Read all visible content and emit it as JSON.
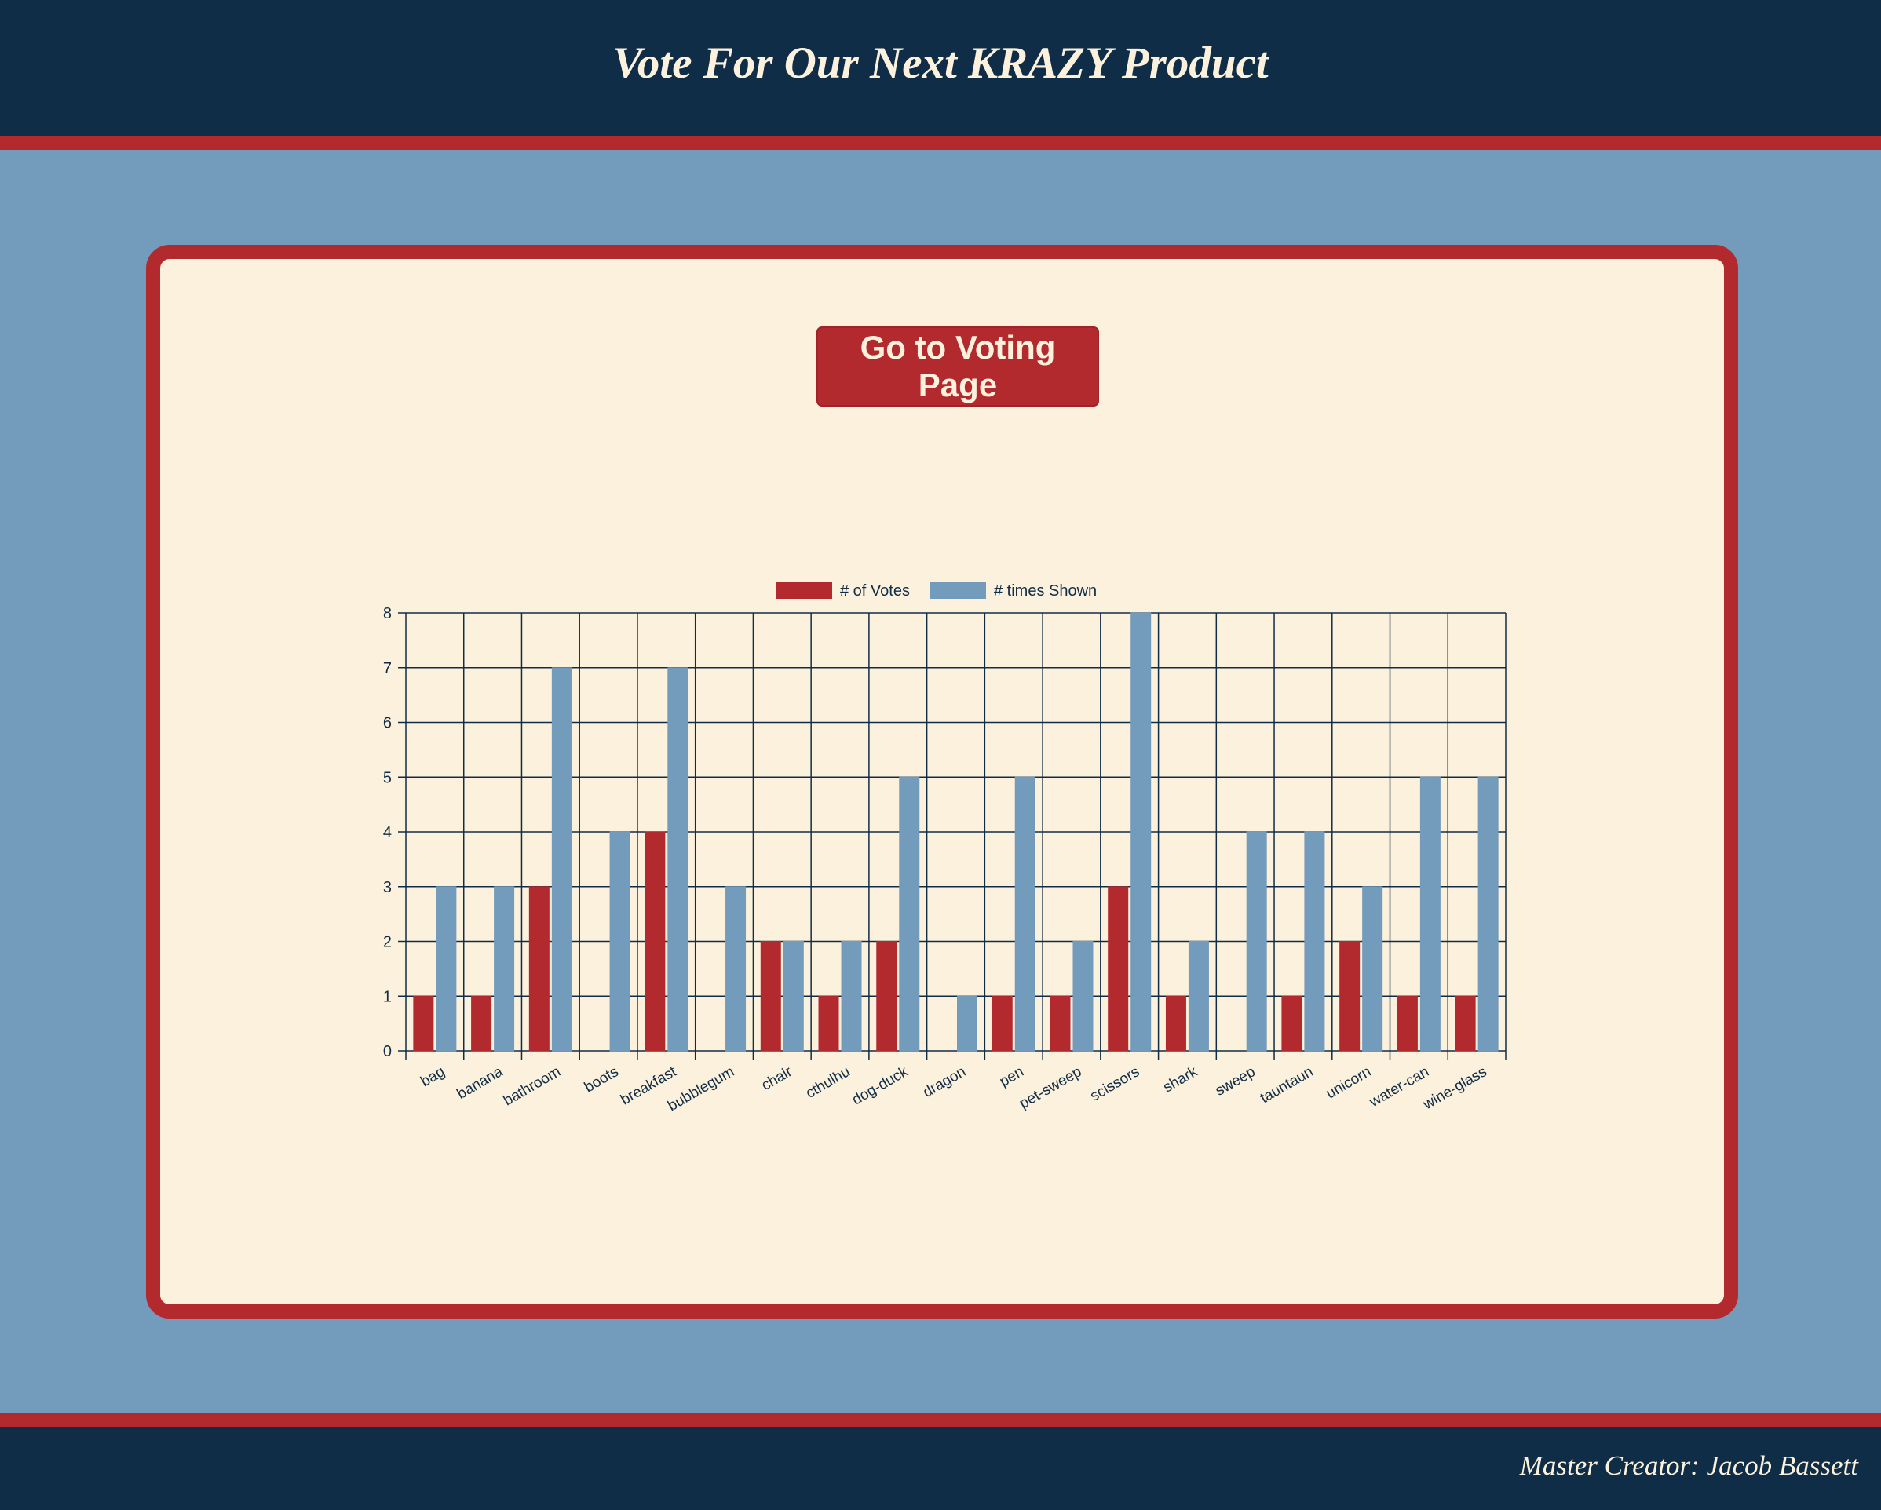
{
  "header": {
    "title": "Vote For Our Next KRAZY Product"
  },
  "panel": {
    "vote_button_label": "Go to Voting Page"
  },
  "footer": {
    "credit": "Master Creator: Jacob Bassett"
  },
  "colors": {
    "votes": "#b2292e",
    "shown": "#739bbb",
    "grid": "#102d47",
    "text": "#102d47"
  },
  "chart_data": {
    "type": "bar",
    "title": "",
    "xlabel": "",
    "ylabel": "",
    "ylim": [
      0,
      8
    ],
    "yticks": [
      0,
      1,
      2,
      3,
      4,
      5,
      6,
      7,
      8
    ],
    "grid": true,
    "legend_position": "top-center",
    "categories": [
      "bag",
      "banana",
      "bathroom",
      "boots",
      "breakfast",
      "bubblegum",
      "chair",
      "cthulhu",
      "dog-duck",
      "dragon",
      "pen",
      "pet-sweep",
      "scissors",
      "shark",
      "sweep",
      "tauntaun",
      "unicorn",
      "water-can",
      "wine-glass"
    ],
    "series": [
      {
        "name": "# of Votes",
        "color": "#b2292e",
        "values": [
          1,
          1,
          3,
          0,
          4,
          0,
          2,
          1,
          2,
          0,
          1,
          1,
          3,
          1,
          0,
          1,
          2,
          1,
          1
        ]
      },
      {
        "name": "# times Shown",
        "color": "#739bbb",
        "values": [
          3,
          3,
          7,
          4,
          7,
          3,
          2,
          2,
          5,
          1,
          5,
          2,
          8,
          2,
          4,
          4,
          3,
          5,
          5
        ]
      }
    ]
  }
}
